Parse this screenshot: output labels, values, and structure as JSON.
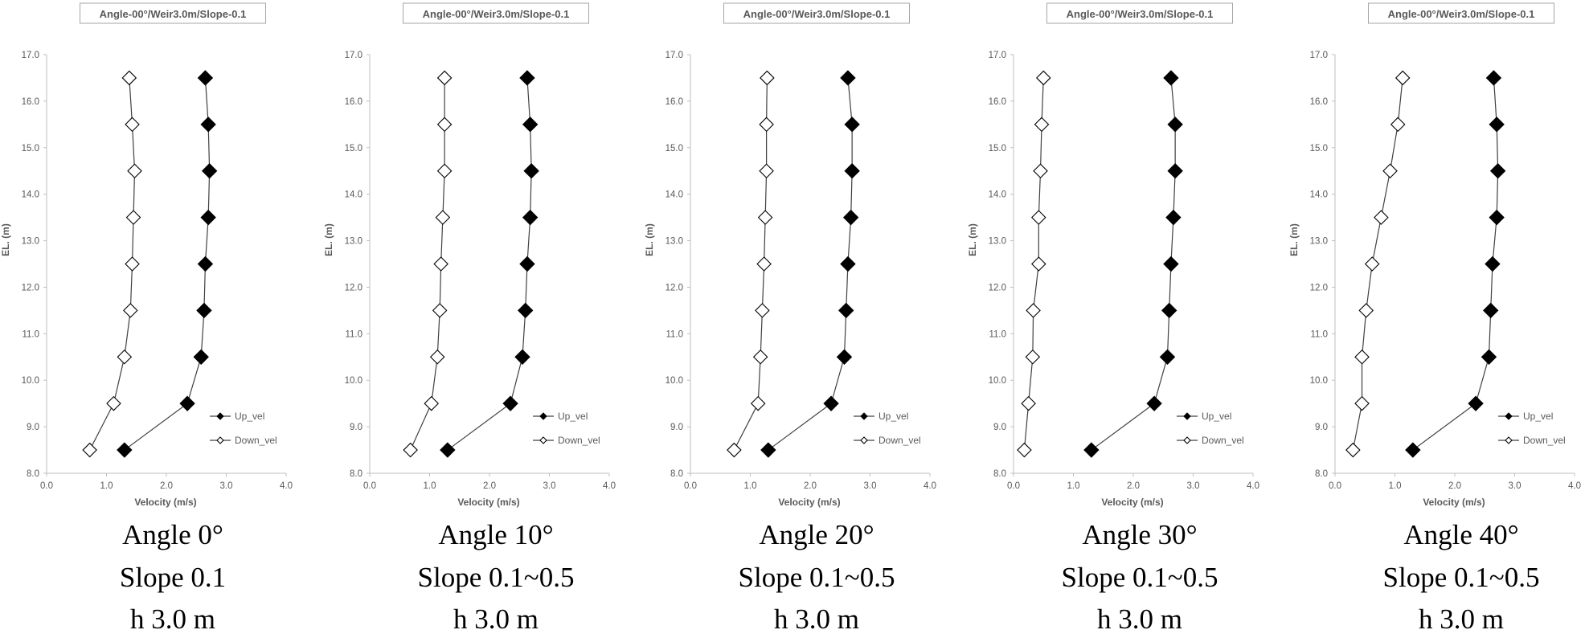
{
  "chart_data": [
    {
      "type": "line",
      "title": "Angle-00°/Weir3.0m/Slope-0.1",
      "xlabel": "Velocity (m/s)",
      "ylabel": "EL. (m)",
      "xlim": [
        0,
        4
      ],
      "ylim": [
        8,
        17
      ],
      "x_ticks": [
        "0.0",
        "1.0",
        "2.0",
        "3.0",
        "4.0"
      ],
      "y_ticks": [
        "8.0",
        "9.0",
        "10.0",
        "11.0",
        "12.0",
        "13.0",
        "14.0",
        "15.0",
        "16.0",
        "17.0"
      ],
      "legend_position": "bottom-right",
      "elevations": [
        8.5,
        9.5,
        10.5,
        11.5,
        12.5,
        13.5,
        14.5,
        15.5,
        16.5
      ],
      "series": [
        {
          "name": "Up_vel",
          "marker": "filled-diamond",
          "values": [
            1.3,
            2.35,
            2.58,
            2.63,
            2.65,
            2.7,
            2.72,
            2.7,
            2.65
          ]
        },
        {
          "name": "Down_vel",
          "marker": "open-diamond",
          "values": [
            0.72,
            1.12,
            1.3,
            1.4,
            1.43,
            1.45,
            1.47,
            1.43,
            1.38
          ]
        }
      ],
      "caption": [
        "Angle 0°",
        "Slope 0.1",
        "h 3.0 m"
      ]
    },
    {
      "type": "line",
      "title": "Angle-00°/Weir3.0m/Slope-0.1",
      "xlabel": "Velocity (m/s)",
      "ylabel": "EL. (m)",
      "xlim": [
        0,
        4
      ],
      "ylim": [
        8,
        17
      ],
      "x_ticks": [
        "0.0",
        "1.0",
        "2.0",
        "3.0",
        "4.0"
      ],
      "y_ticks": [
        "8.0",
        "9.0",
        "10.0",
        "11.0",
        "12.0",
        "13.0",
        "14.0",
        "15.0",
        "16.0",
        "17.0"
      ],
      "legend_position": "bottom-right",
      "elevations": [
        8.5,
        9.5,
        10.5,
        11.5,
        12.5,
        13.5,
        14.5,
        15.5,
        16.5
      ],
      "series": [
        {
          "name": "Up_vel",
          "marker": "filled-diamond",
          "values": [
            1.3,
            2.35,
            2.55,
            2.6,
            2.63,
            2.68,
            2.7,
            2.68,
            2.63
          ]
        },
        {
          "name": "Down_vel",
          "marker": "open-diamond",
          "values": [
            0.68,
            1.03,
            1.13,
            1.17,
            1.19,
            1.22,
            1.25,
            1.25,
            1.25
          ]
        }
      ],
      "caption": [
        "Angle 10°",
        "Slope 0.1~0.5",
        "h 3.0 m"
      ]
    },
    {
      "type": "line",
      "title": "Angle-00°/Weir3.0m/Slope-0.1",
      "xlabel": "Velocity (m/s)",
      "ylabel": "EL. (m)",
      "xlim": [
        0,
        4
      ],
      "ylim": [
        8,
        17
      ],
      "x_ticks": [
        "0.0",
        "1.0",
        "2.0",
        "3.0",
        "4.0"
      ],
      "y_ticks": [
        "8.0",
        "9.0",
        "10.0",
        "11.0",
        "12.0",
        "13.0",
        "14.0",
        "15.0",
        "16.0",
        "17.0"
      ],
      "legend_position": "bottom-right",
      "elevations": [
        8.5,
        9.5,
        10.5,
        11.5,
        12.5,
        13.5,
        14.5,
        15.5,
        16.5
      ],
      "series": [
        {
          "name": "Up_vel",
          "marker": "filled-diamond",
          "values": [
            1.3,
            2.35,
            2.57,
            2.6,
            2.63,
            2.68,
            2.7,
            2.7,
            2.63
          ]
        },
        {
          "name": "Down_vel",
          "marker": "open-diamond",
          "values": [
            0.73,
            1.13,
            1.17,
            1.2,
            1.23,
            1.25,
            1.27,
            1.27,
            1.28
          ]
        }
      ],
      "caption": [
        "Angle 20°",
        "Slope 0.1~0.5",
        "h 3.0 m"
      ]
    },
    {
      "type": "line",
      "title": "Angle-00°/Weir3.0m/Slope-0.1",
      "xlabel": "Velocity (m/s)",
      "ylabel": "EL. (m)",
      "xlim": [
        0,
        4
      ],
      "ylim": [
        8,
        17
      ],
      "x_ticks": [
        "0.0",
        "1.0",
        "2.0",
        "3.0",
        "4.0"
      ],
      "y_ticks": [
        "8.0",
        "9.0",
        "10.0",
        "11.0",
        "12.0",
        "13.0",
        "14.0",
        "15.0",
        "16.0",
        "17.0"
      ],
      "legend_position": "bottom-right",
      "elevations": [
        8.5,
        9.5,
        10.5,
        11.5,
        12.5,
        13.5,
        14.5,
        15.5,
        16.5
      ],
      "series": [
        {
          "name": "Up_vel",
          "marker": "filled-diamond",
          "values": [
            1.3,
            2.35,
            2.57,
            2.6,
            2.63,
            2.67,
            2.7,
            2.7,
            2.63
          ]
        },
        {
          "name": "Down_vel",
          "marker": "open-diamond",
          "values": [
            0.18,
            0.25,
            0.32,
            0.33,
            0.42,
            0.42,
            0.45,
            0.47,
            0.5
          ]
        }
      ],
      "caption": [
        "Angle 30°",
        "Slope 0.1~0.5",
        "h 3.0 m"
      ]
    },
    {
      "type": "line",
      "title": "Angle-00°/Weir3.0m/Slope-0.1",
      "xlabel": "Velocity (m/s)",
      "ylabel": "EL. (m)",
      "xlim": [
        0,
        4
      ],
      "ylim": [
        8,
        17
      ],
      "x_ticks": [
        "0.0",
        "1.0",
        "2.0",
        "3.0",
        "4.0"
      ],
      "y_ticks": [
        "8.0",
        "9.0",
        "10.0",
        "11.0",
        "12.0",
        "13.0",
        "14.0",
        "15.0",
        "16.0",
        "17.0"
      ],
      "legend_position": "bottom-right",
      "elevations": [
        8.5,
        9.5,
        10.5,
        11.5,
        12.5,
        13.5,
        14.5,
        15.5,
        16.5
      ],
      "series": [
        {
          "name": "Up_vel",
          "marker": "filled-diamond",
          "values": [
            1.3,
            2.35,
            2.57,
            2.6,
            2.63,
            2.7,
            2.72,
            2.7,
            2.65
          ]
        },
        {
          "name": "Down_vel",
          "marker": "open-diamond",
          "values": [
            0.3,
            0.45,
            0.45,
            0.52,
            0.62,
            0.77,
            0.92,
            1.05,
            1.13
          ]
        }
      ],
      "caption": [
        "Angle 40°",
        "Slope 0.1~0.5",
        "h 3.0 m"
      ]
    }
  ]
}
